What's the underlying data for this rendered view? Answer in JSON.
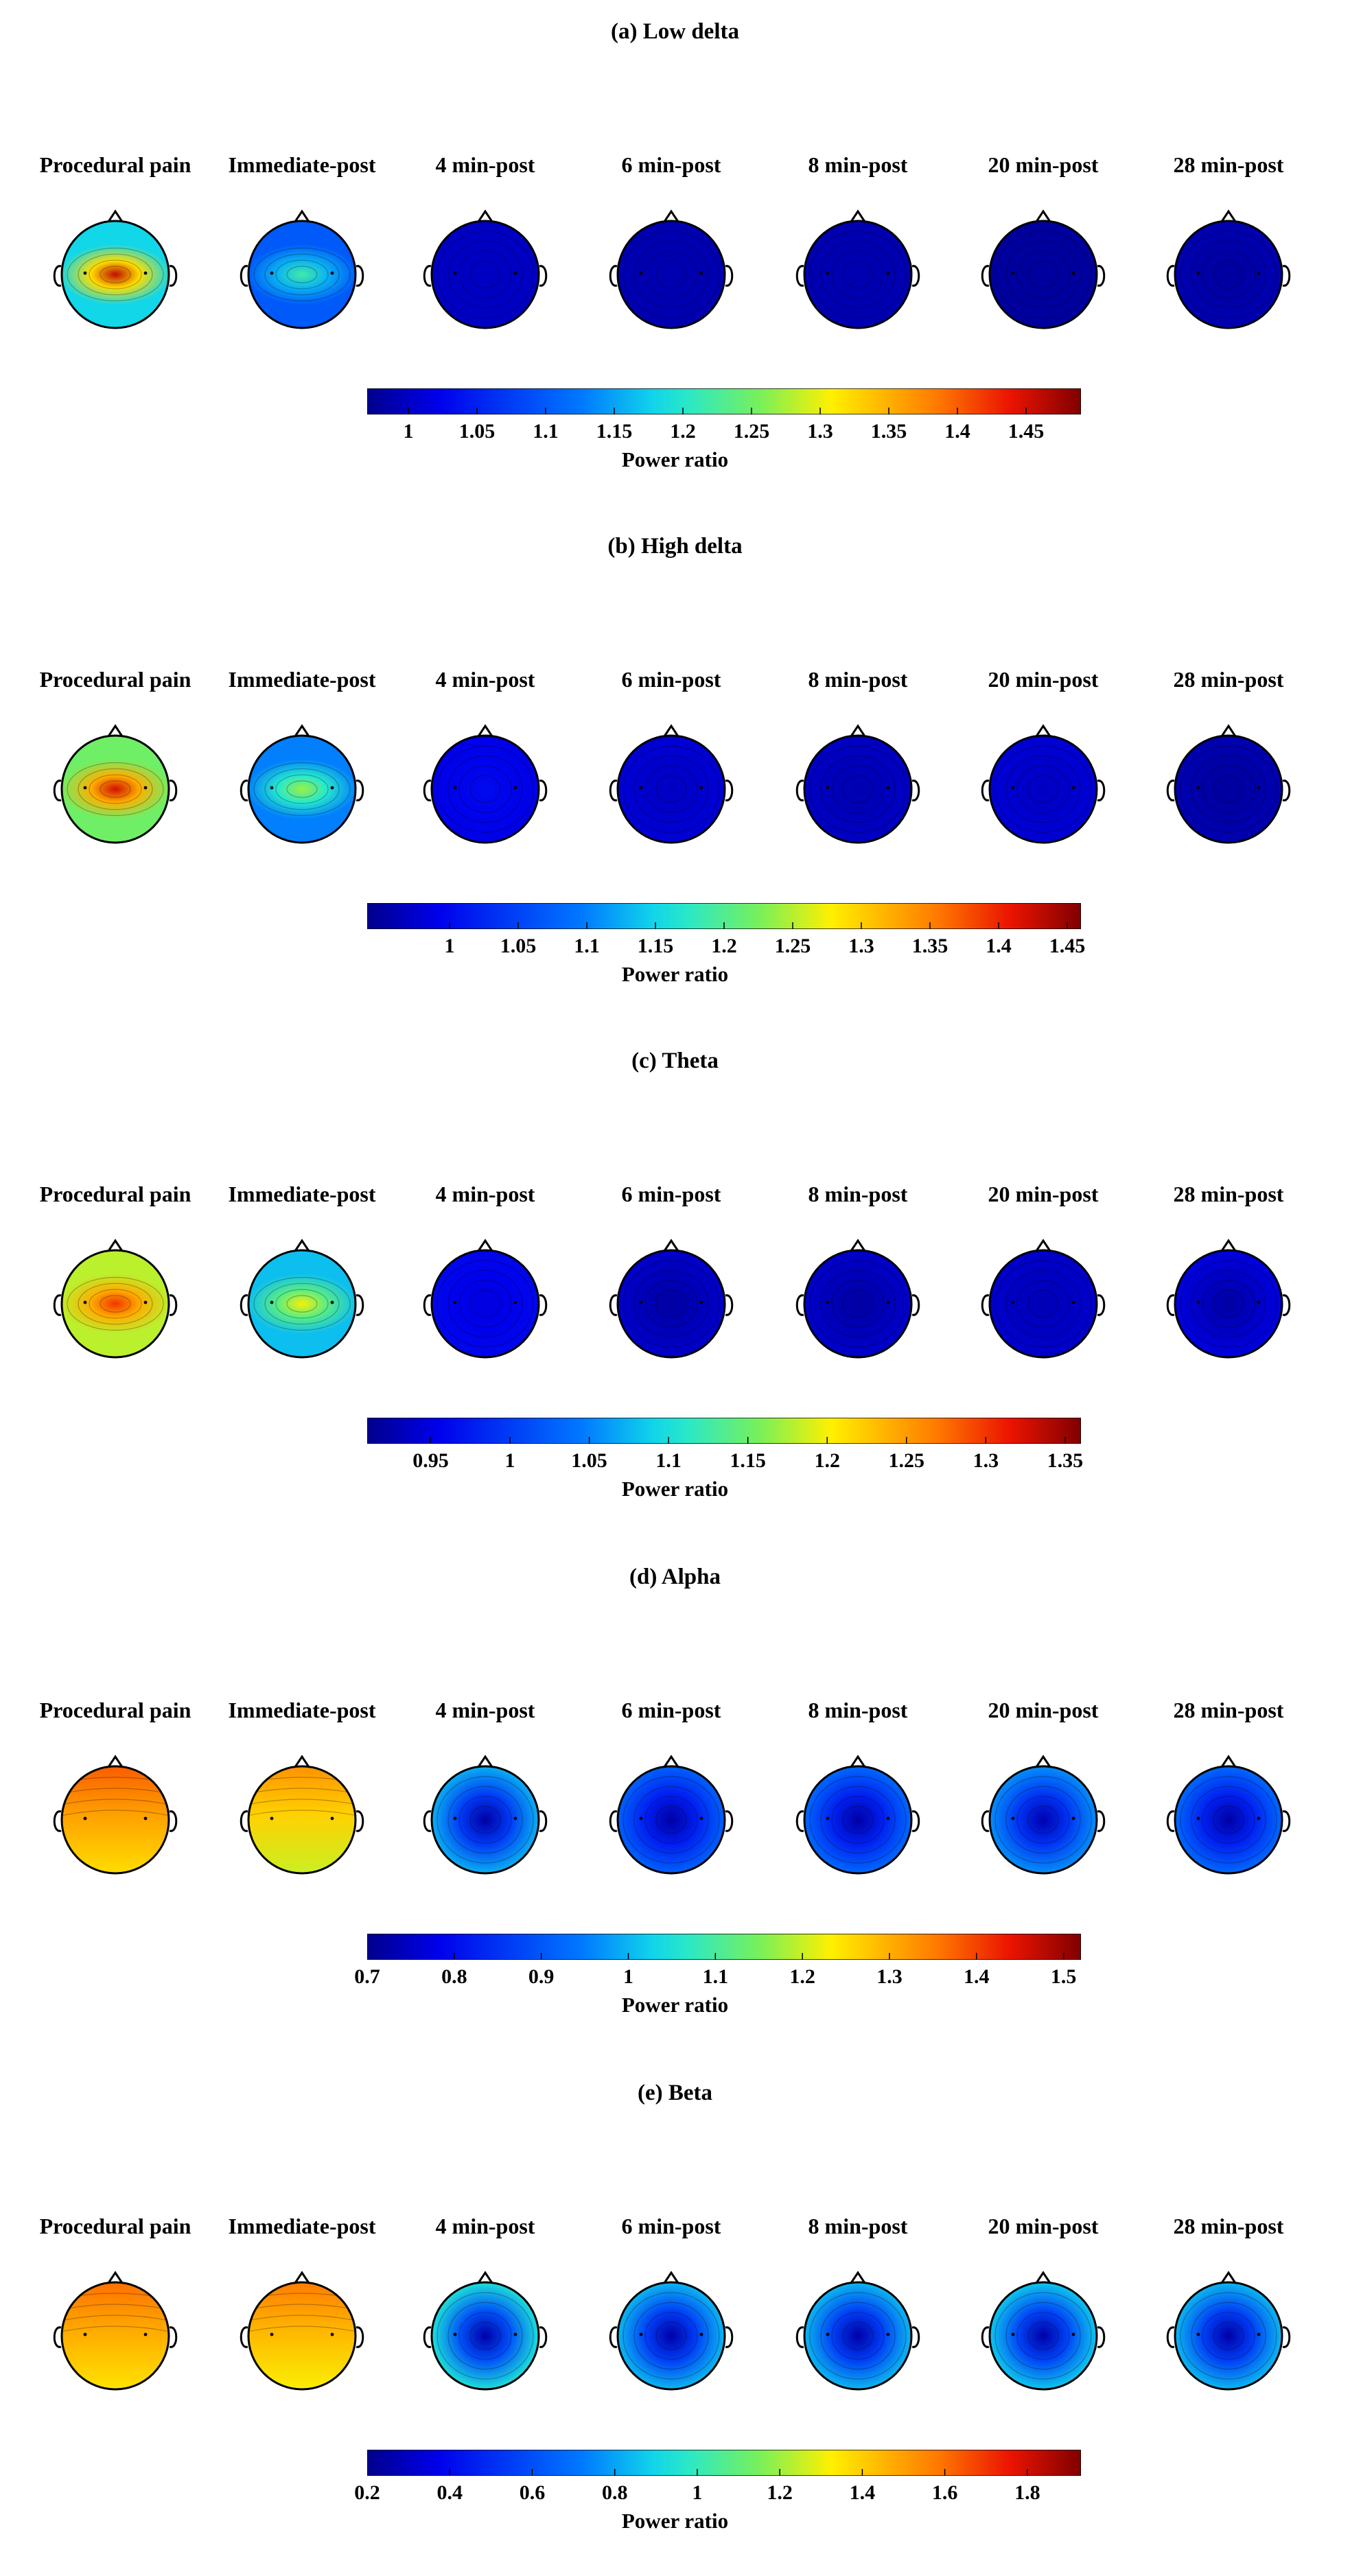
{
  "figure": {
    "conditions": [
      "Procedural pain",
      "Immediate-post",
      "4 min-post",
      "6 min-post",
      "8 min-post",
      "20 min-post",
      "28 min-post"
    ]
  },
  "chart_data": [
    {
      "type": "heatmap",
      "title": "(a) Low delta",
      "colorbar_label": "Power ratio",
      "colorbar_range": [
        0.97,
        1.49
      ],
      "colorbar_ticks": [
        "1",
        "1.05",
        "1.1",
        "1.15",
        "1.2",
        "1.25",
        "1.3",
        "1.35",
        "1.4",
        "1.45"
      ],
      "maps": [
        {
          "condition": "Procedural pain",
          "center": 1.46,
          "edge": 1.18,
          "shape": "horizontal"
        },
        {
          "condition": "Immediate-post",
          "center": 1.22,
          "edge": 1.1,
          "shape": "horizontal"
        },
        {
          "condition": "4 min-post",
          "center": 1.0,
          "edge": 1.0,
          "shape": "uniform"
        },
        {
          "condition": "6 min-post",
          "center": 0.99,
          "edge": 0.99,
          "shape": "uniform"
        },
        {
          "condition": "8 min-post",
          "center": 0.99,
          "edge": 0.99,
          "shape": "uniform"
        },
        {
          "condition": "20 min-post",
          "center": 0.98,
          "edge": 0.98,
          "shape": "uniform"
        },
        {
          "condition": "28 min-post",
          "center": 0.98,
          "edge": 0.99,
          "shape": "uniform"
        }
      ]
    },
    {
      "type": "heatmap",
      "title": "(b) High delta",
      "colorbar_label": "Power ratio",
      "colorbar_range": [
        0.94,
        1.46
      ],
      "colorbar_ticks": [
        "1",
        "1.05",
        "1.1",
        "1.15",
        "1.2",
        "1.25",
        "1.3",
        "1.35",
        "1.4",
        "1.45"
      ],
      "maps": [
        {
          "condition": "Procedural pain",
          "center": 1.42,
          "edge": 1.22,
          "shape": "horizontal"
        },
        {
          "condition": "Immediate-post",
          "center": 1.24,
          "edge": 1.1,
          "shape": "horizontal"
        },
        {
          "condition": "4 min-post",
          "center": 1.0,
          "edge": 0.99,
          "shape": "uniform"
        },
        {
          "condition": "6 min-post",
          "center": 0.97,
          "edge": 0.98,
          "shape": "uniform"
        },
        {
          "condition": "8 min-post",
          "center": 0.96,
          "edge": 0.97,
          "shape": "uniform"
        },
        {
          "condition": "20 min-post",
          "center": 0.97,
          "edge": 0.98,
          "shape": "uniform"
        },
        {
          "condition": "28 min-post",
          "center": 0.95,
          "edge": 0.96,
          "shape": "uniform"
        }
      ]
    },
    {
      "type": "heatmap",
      "title": "(c) Theta",
      "colorbar_label": "Power ratio",
      "colorbar_range": [
        0.91,
        1.36
      ],
      "colorbar_ticks": [
        "0.95",
        "1",
        "1.05",
        "1.1",
        "1.15",
        "1.2",
        "1.25",
        "1.3",
        "1.35"
      ],
      "maps": [
        {
          "condition": "Procedural pain",
          "center": 1.3,
          "edge": 1.18,
          "shape": "horizontal"
        },
        {
          "condition": "Immediate-post",
          "center": 1.2,
          "edge": 1.08,
          "shape": "horizontal"
        },
        {
          "condition": "4 min-post",
          "center": 0.95,
          "edge": 0.96,
          "shape": "uniform"
        },
        {
          "condition": "6 min-post",
          "center": 0.92,
          "edge": 0.94,
          "shape": "uniform"
        },
        {
          "condition": "8 min-post",
          "center": 0.92,
          "edge": 0.94,
          "shape": "uniform"
        },
        {
          "condition": "20 min-post",
          "center": 0.93,
          "edge": 0.94,
          "shape": "uniform"
        },
        {
          "condition": "28 min-post",
          "center": 0.92,
          "edge": 0.95,
          "shape": "uniform"
        }
      ]
    },
    {
      "type": "heatmap",
      "title": "(d) Alpha",
      "colorbar_label": "Power ratio",
      "colorbar_range": [
        0.7,
        1.52
      ],
      "colorbar_ticks": [
        "0.7",
        "0.8",
        "0.9",
        "1",
        "1.1",
        "1.2",
        "1.3",
        "1.4",
        "1.5"
      ],
      "maps": [
        {
          "condition": "Procedural pain",
          "center": 1.25,
          "edge": 1.38,
          "shape": "frontal"
        },
        {
          "condition": "Immediate-post",
          "center": 1.2,
          "edge": 1.33,
          "shape": "frontal"
        },
        {
          "condition": "4 min-post",
          "center": 0.72,
          "edge": 1.0,
          "shape": "radial"
        },
        {
          "condition": "6 min-post",
          "center": 0.72,
          "edge": 0.92,
          "shape": "radial"
        },
        {
          "condition": "8 min-post",
          "center": 0.72,
          "edge": 0.93,
          "shape": "radial"
        },
        {
          "condition": "20 min-post",
          "center": 0.73,
          "edge": 0.97,
          "shape": "radial"
        },
        {
          "condition": "28 min-post",
          "center": 0.72,
          "edge": 0.93,
          "shape": "radial"
        }
      ]
    },
    {
      "type": "heatmap",
      "title": "(e) Beta",
      "colorbar_label": "Power ratio",
      "colorbar_range": [
        0.2,
        1.93
      ],
      "colorbar_ticks": [
        "0.2",
        "0.4",
        "0.6",
        "0.8",
        "1",
        "1.2",
        "1.4",
        "1.6",
        "1.8"
      ],
      "maps": [
        {
          "condition": "Procedural pain",
          "center": 1.35,
          "edge": 1.6,
          "shape": "frontal"
        },
        {
          "condition": "Immediate-post",
          "center": 1.32,
          "edge": 1.58,
          "shape": "frontal"
        },
        {
          "condition": "4 min-post",
          "center": 0.25,
          "edge": 0.95,
          "shape": "radial"
        },
        {
          "condition": "6 min-post",
          "center": 0.25,
          "edge": 0.85,
          "shape": "radial"
        },
        {
          "condition": "8 min-post",
          "center": 0.25,
          "edge": 0.85,
          "shape": "radial"
        },
        {
          "condition": "20 min-post",
          "center": 0.25,
          "edge": 0.88,
          "shape": "radial"
        },
        {
          "condition": "28 min-post",
          "center": 0.25,
          "edge": 0.85,
          "shape": "radial"
        }
      ]
    }
  ]
}
